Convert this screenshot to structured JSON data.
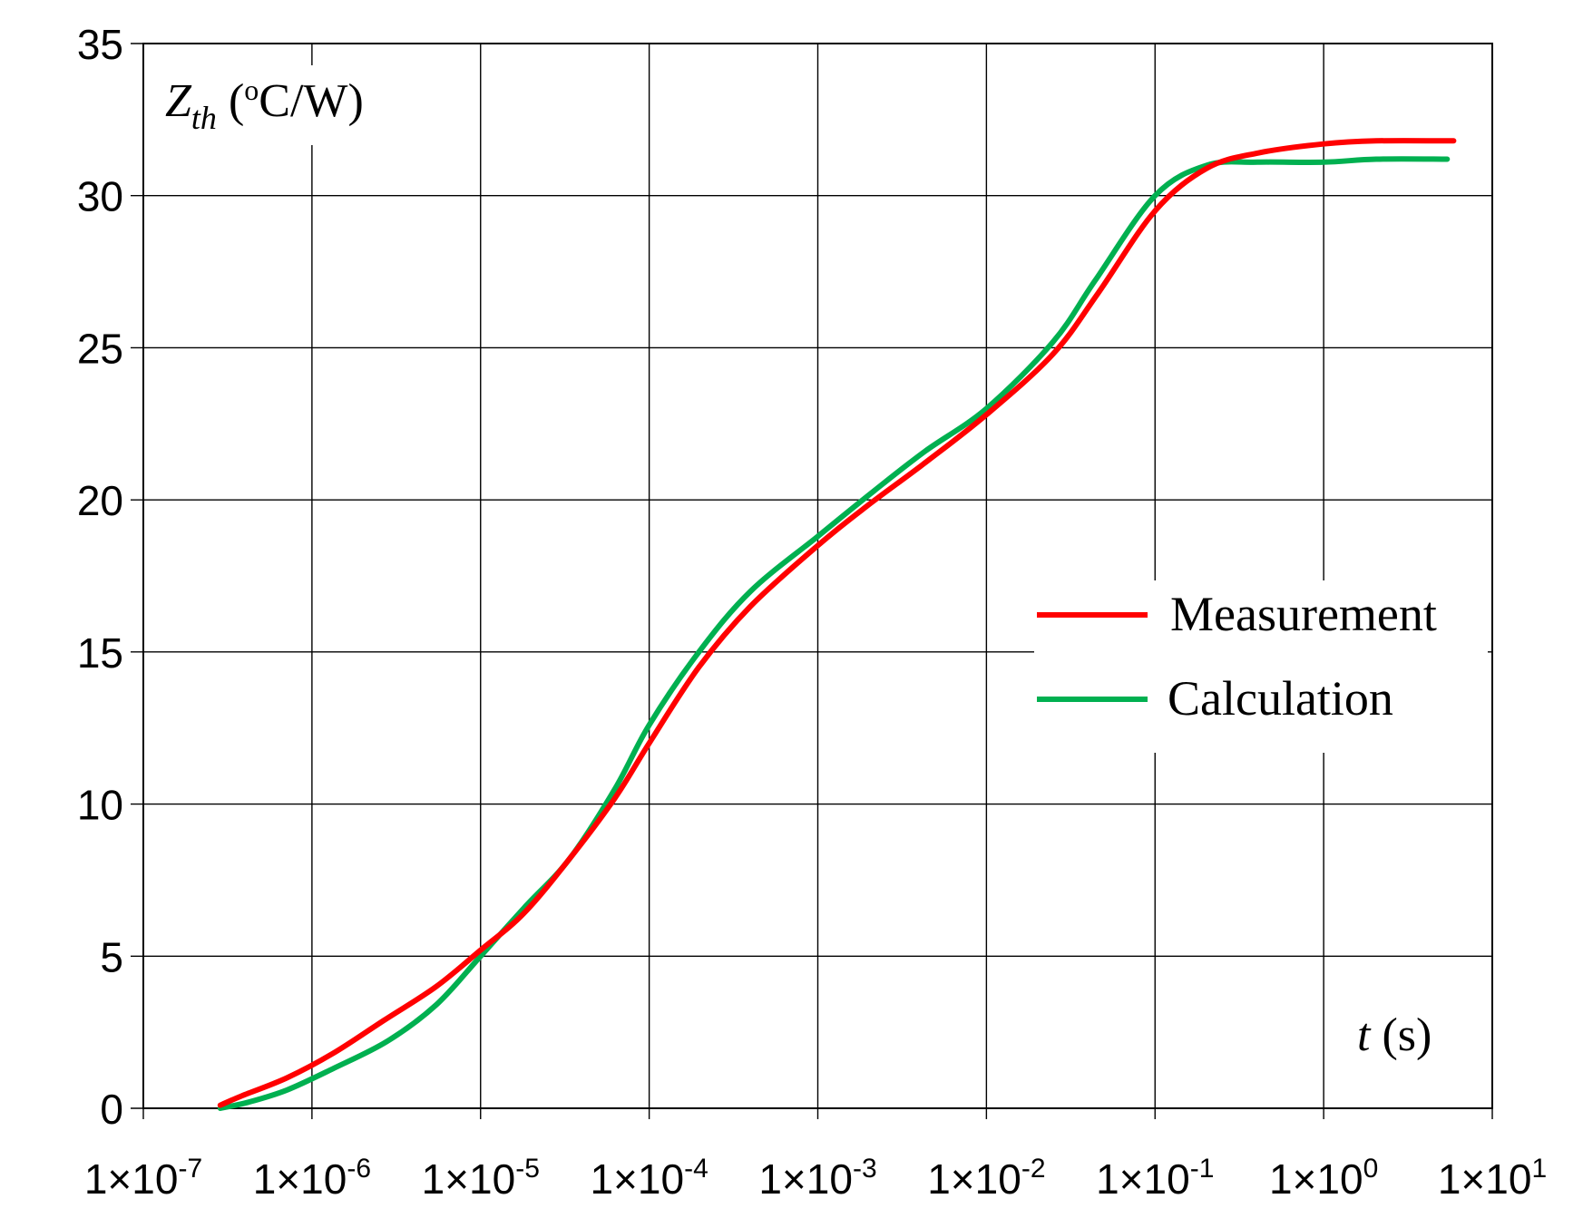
{
  "chart_data": {
    "type": "line",
    "x_scale": "log",
    "ylabel": {
      "main": "Z",
      "sub": "th",
      "unit_open": " (",
      "unit_sup": "o",
      "unit_rest": "C/W)"
    },
    "xlabel": {
      "var": "t",
      "unit": " (s)"
    },
    "ylim": [
      0,
      35
    ],
    "y_ticks": [
      0,
      5,
      10,
      15,
      20,
      25,
      30,
      35
    ],
    "xlim": [
      1e-07,
      10
    ],
    "x_ticks": [
      {
        "value": 1e-07,
        "base": "1×10",
        "exp": "-7"
      },
      {
        "value": 1e-06,
        "base": "1×10",
        "exp": "-6"
      },
      {
        "value": 1e-05,
        "base": "1×10",
        "exp": "-5"
      },
      {
        "value": 0.0001,
        "base": "1×10",
        "exp": "-4"
      },
      {
        "value": 0.001,
        "base": "1×10",
        "exp": "-3"
      },
      {
        "value": 0.01,
        "base": "1×10",
        "exp": "-2"
      },
      {
        "value": 0.1,
        "base": "1×10",
        "exp": "-1"
      },
      {
        "value": 1,
        "base": "1×10",
        "exp": "0"
      },
      {
        "value": 10,
        "base": "1×10",
        "exp": "1"
      }
    ],
    "grid": true,
    "legend_position": "right",
    "series": [
      {
        "name": "Measurement",
        "color": "#ff0000",
        "points": [
          [
            2.86e-07,
            0.1
          ],
          [
            3.8e-07,
            0.4
          ],
          [
            7.1e-07,
            1.0
          ],
          [
            1.33e-06,
            1.8
          ],
          [
            2.69e-06,
            2.9
          ],
          [
            5.45e-06,
            4.0
          ],
          [
            1e-05,
            5.2
          ],
          [
            1.8e-05,
            6.4
          ],
          [
            3.37e-05,
            8.2
          ],
          [
            6.27e-05,
            10.2
          ],
          [
            0.0001,
            12.0
          ],
          [
            0.000197,
            14.5
          ],
          [
            0.000399,
            16.5
          ],
          [
            0.001,
            18.5
          ],
          [
            0.00196,
            19.8
          ],
          [
            0.00428,
            21.2
          ],
          [
            0.01,
            22.8
          ],
          [
            0.0249,
            24.8
          ],
          [
            0.046,
            26.8
          ],
          [
            0.1,
            29.5
          ],
          [
            0.203,
            30.9
          ],
          [
            0.406,
            31.4
          ],
          [
            1.0,
            31.7
          ],
          [
            2.05,
            31.8
          ],
          [
            5.9,
            31.8
          ]
        ]
      },
      {
        "name": "Calculation",
        "color": "#00b050",
        "points": [
          [
            2.86e-07,
            0.0
          ],
          [
            4.2e-07,
            0.2
          ],
          [
            7.1e-07,
            0.6
          ],
          [
            1.33e-06,
            1.3
          ],
          [
            2.79e-06,
            2.2
          ],
          [
            5.45e-06,
            3.4
          ],
          [
            1e-05,
            5.0
          ],
          [
            1.82e-05,
            6.6
          ],
          [
            3.37e-05,
            8.2
          ],
          [
            6.27e-05,
            10.5
          ],
          [
            0.0001,
            12.6
          ],
          [
            0.000197,
            15.0
          ],
          [
            0.0004,
            17.0
          ],
          [
            0.001,
            18.8
          ],
          [
            0.00216,
            20.3
          ],
          [
            0.00433,
            21.6
          ],
          [
            0.01,
            23.0
          ],
          [
            0.0249,
            25.2
          ],
          [
            0.044,
            27.2
          ],
          [
            0.1,
            30.0
          ],
          [
            0.203,
            31.0
          ],
          [
            0.406,
            31.1
          ],
          [
            1.0,
            31.1
          ],
          [
            2.05,
            31.2
          ],
          [
            5.4,
            31.2
          ]
        ]
      }
    ]
  }
}
